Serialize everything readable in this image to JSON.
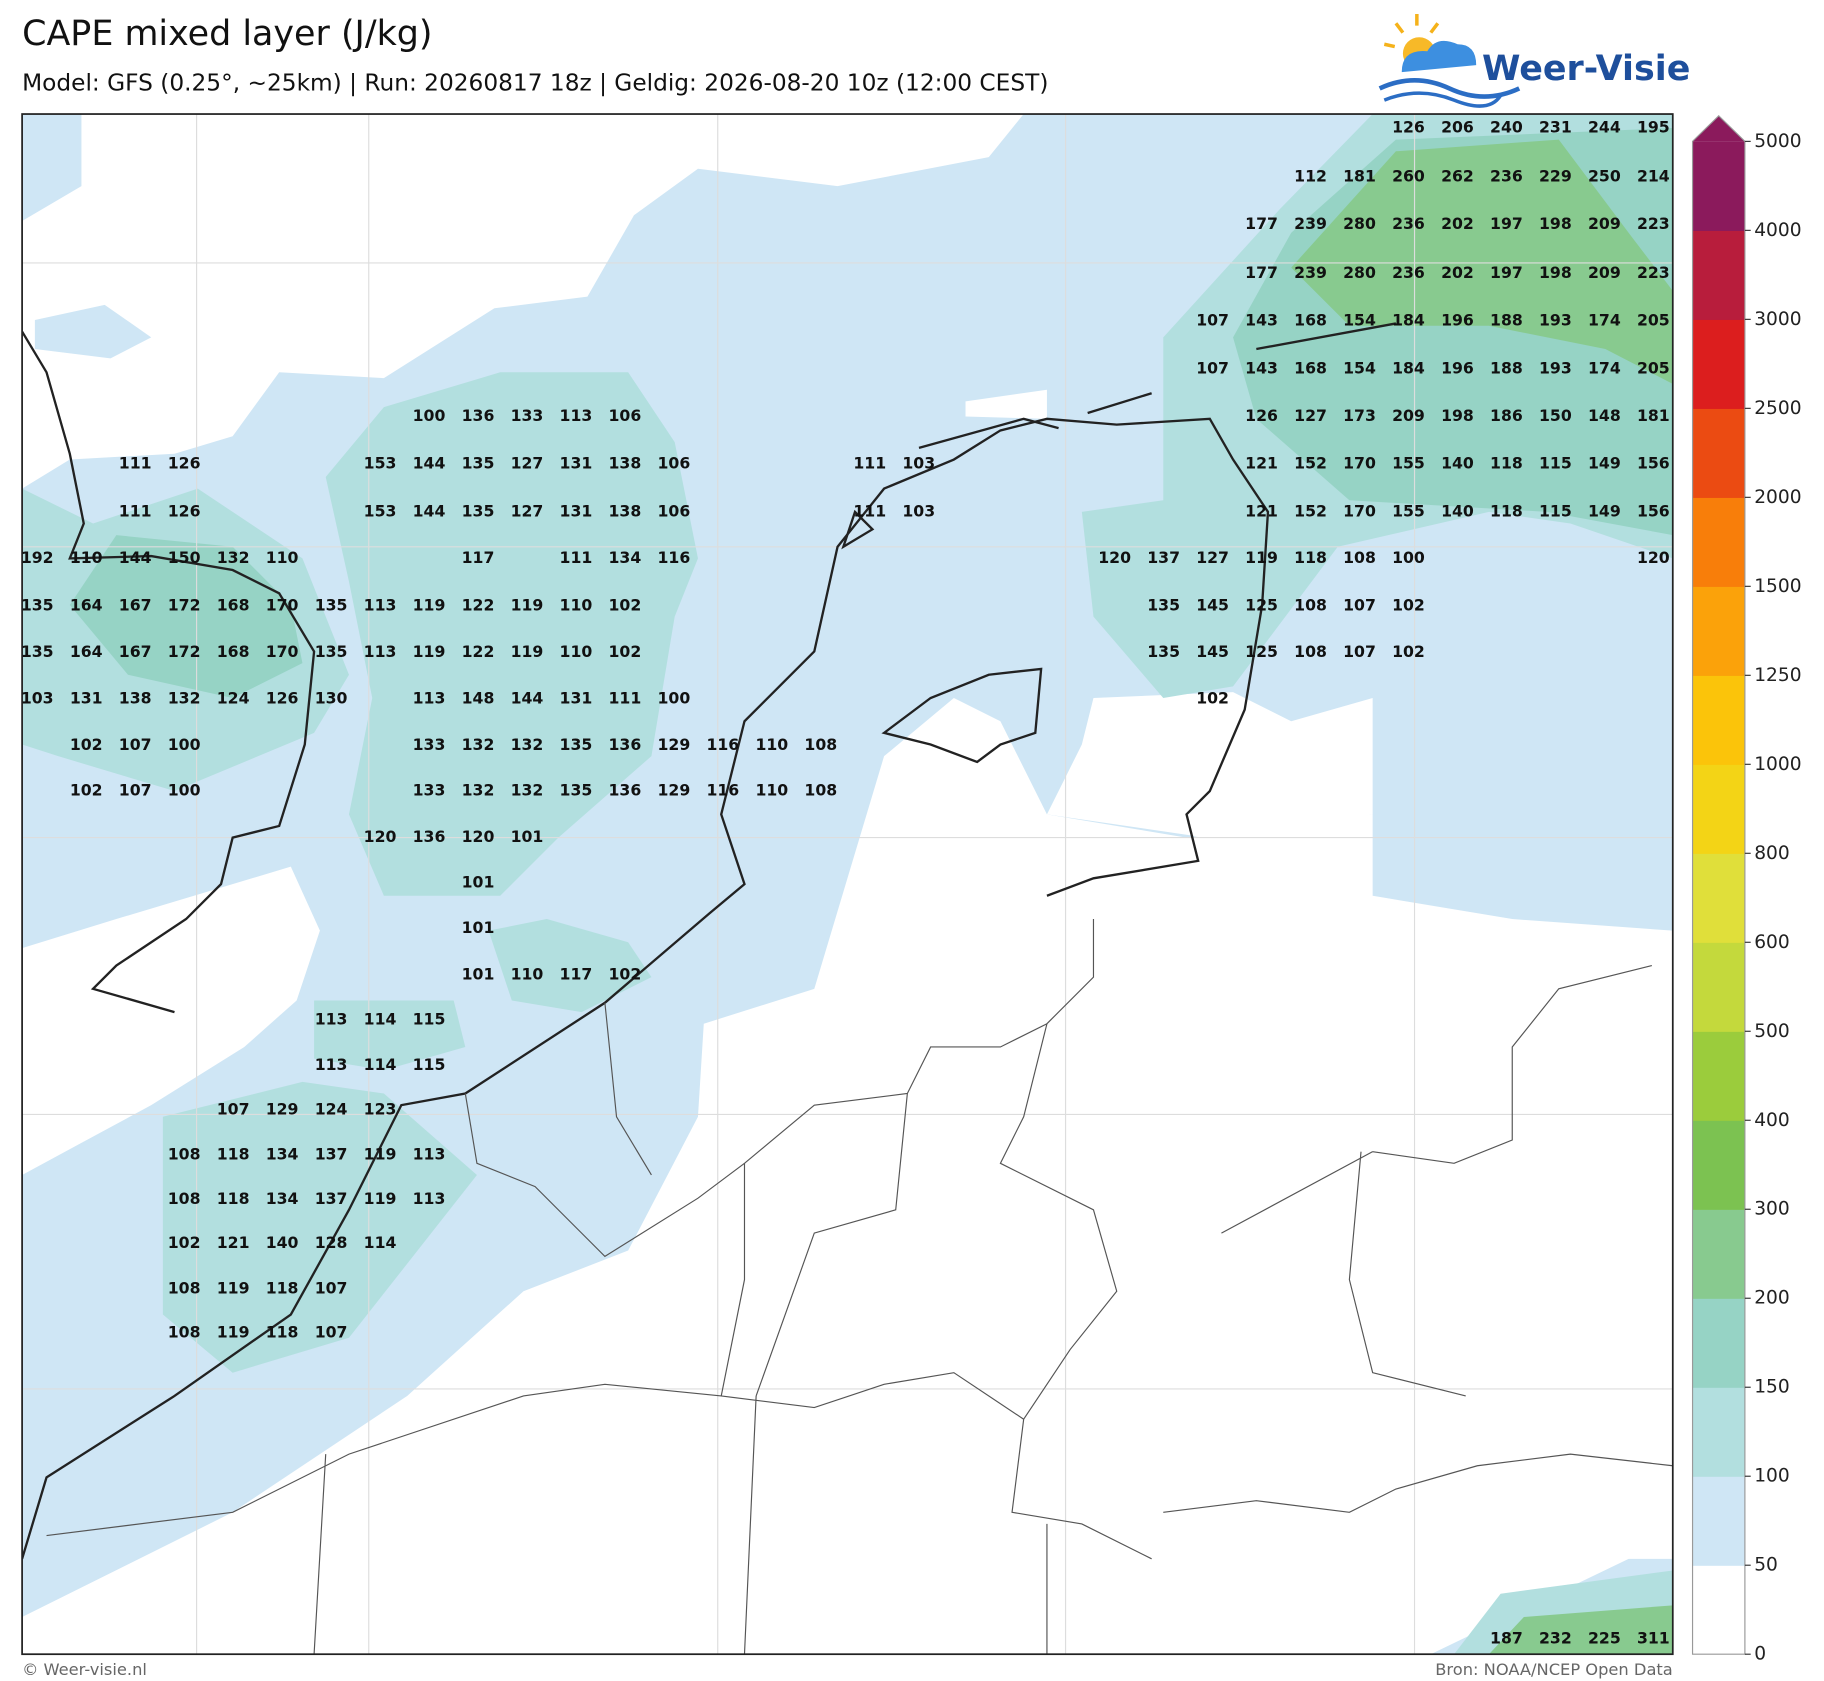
{
  "title": "CAPE mixed layer (J/kg)",
  "subtitle": "Model: GFS (0.25°, ~25km)  |  Run: 20260817 18z  |  Geldig: 2026-08-20 10z (12:00 CEST)",
  "logo": "Weer-Visie",
  "footer_left": "© Weer-visie.nl",
  "footer_right": "Bron: NOAA/NCEP Open Data",
  "colorbar": {
    "ticks": [
      0,
      50,
      100,
      150,
      200,
      300,
      400,
      500,
      600,
      800,
      1000,
      1250,
      1500,
      2000,
      2500,
      3000,
      4000,
      5000
    ],
    "colors": [
      "#ffffff",
      "#cfe6f5",
      "#b2dfdf",
      "#96d3c5",
      "#88ca8f",
      "#7cc251",
      "#9bcc3c",
      "#c4d93c",
      "#e0df3a",
      "#f3d416",
      "#fbc40a",
      "#fba20a",
      "#f87e0a",
      "#eb4b12",
      "#dc1e1e",
      "#b81d3c",
      "#8b1a5c"
    ]
  },
  "grid_labels": [
    [
      126,
      206,
      240,
      231,
      244,
      195
    ],
    [
      112,
      181,
      260,
      262,
      236,
      229,
      250,
      214
    ],
    [
      177,
      239,
      280,
      236,
      202,
      197,
      198,
      209,
      223
    ],
    [
      177,
      239,
      280,
      236,
      202,
      197,
      198,
      209,
      223
    ],
    [
      107,
      143,
      168,
      154,
      184,
      196,
      188,
      193,
      174,
      205
    ],
    [
      107,
      143,
      168,
      154,
      184,
      196,
      188,
      193,
      174,
      205
    ],
    [
      100,
      136,
      133,
      113,
      106,
      126,
      127,
      173,
      209,
      198,
      186,
      150,
      148,
      181
    ],
    [
      111,
      126,
      153,
      144,
      135,
      127,
      131,
      138,
      106,
      111,
      103,
      121,
      152,
      170,
      155,
      140,
      118,
      115,
      149,
      156
    ],
    [
      111,
      126,
      153,
      144,
      135,
      127,
      131,
      138,
      106,
      111,
      103,
      121,
      152,
      170,
      155,
      140,
      118,
      115,
      149,
      156
    ],
    [
      192,
      110,
      144,
      150,
      132,
      110,
      117,
      111,
      134,
      116,
      120,
      137,
      127,
      119,
      118,
      108,
      100,
      120
    ],
    [
      135,
      164,
      167,
      172,
      168,
      170,
      135,
      113,
      119,
      122,
      119,
      110,
      102,
      135,
      145,
      125,
      108,
      107,
      102
    ],
    [
      135,
      164,
      167,
      172,
      168,
      170,
      135,
      113,
      119,
      122,
      119,
      110,
      102,
      135,
      145,
      125,
      108,
      107,
      102
    ],
    [
      103,
      131,
      138,
      132,
      124,
      126,
      130,
      113,
      148,
      144,
      131,
      111,
      100,
      102
    ],
    [
      102,
      107,
      100,
      133,
      132,
      132,
      135,
      136,
      129,
      116,
      110,
      108
    ],
    [
      102,
      107,
      100,
      133,
      132,
      132,
      135,
      136,
      129,
      116,
      110,
      108
    ],
    [
      120,
      136,
      120,
      101
    ],
    [
      101
    ],
    [
      101
    ],
    [
      101,
      110,
      117,
      102
    ],
    [
      113,
      114,
      115
    ],
    [
      113,
      114,
      115
    ],
    [
      107,
      129,
      124,
      123
    ],
    [
      108,
      118,
      134,
      137,
      119,
      113
    ],
    [
      108,
      118,
      134,
      137,
      119,
      113
    ],
    [
      102,
      121,
      140,
      128,
      114
    ],
    [
      108,
      119,
      118,
      107
    ],
    [
      108,
      119,
      118,
      107
    ],
    [
      187,
      232,
      225,
      311
    ]
  ]
}
